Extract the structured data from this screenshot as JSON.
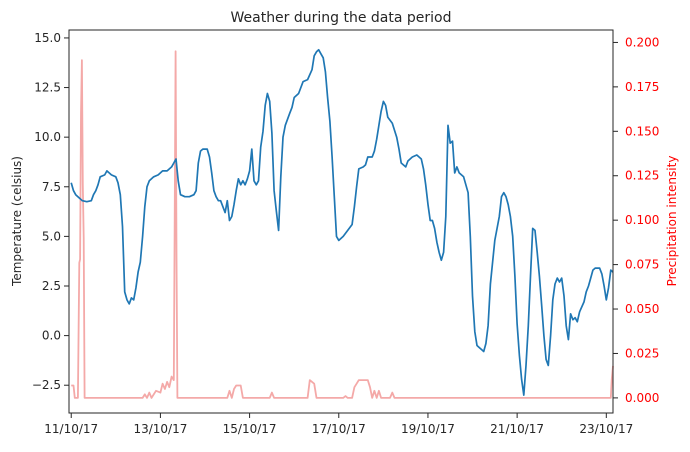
{
  "chart_data": {
    "type": "line",
    "title": "Weather during the data period",
    "xlabel": "",
    "x_ticks": [
      "11/10/17",
      "13/10/17",
      "15/10/17",
      "17/10/17",
      "19/10/17",
      "21/10/17",
      "23/10/17"
    ],
    "xlim": [
      -0.05,
      12.15
    ],
    "y_left": {
      "label": "Temperature (celsius)",
      "ylim": [
        -3.9,
        15.4
      ],
      "ticks": [
        "−2.5",
        "0.0",
        "2.5",
        "5.0",
        "7.5",
        "10.0",
        "12.5",
        "15.0"
      ],
      "tick_values": [
        -2.5,
        0,
        2.5,
        5,
        7.5,
        10,
        12.5,
        15
      ]
    },
    "y_right": {
      "label": "Precipitation intensity",
      "ylim": [
        -0.0085,
        0.207
      ],
      "ticks": [
        "0.000",
        "0.025",
        "0.050",
        "0.075",
        "0.100",
        "0.125",
        "0.150",
        "0.175",
        "0.200"
      ],
      "tick_values": [
        0,
        0.025,
        0.05,
        0.075,
        0.1,
        0.125,
        0.15,
        0.175,
        0.2
      ]
    },
    "grid": false,
    "series": [
      {
        "axis": "left",
        "color": "#1f77b4",
        "points": [
          [
            0,
            7.7
          ],
          [
            0.05,
            7.3
          ],
          [
            0.1,
            7.1
          ],
          [
            0.15,
            7.0
          ],
          [
            0.25,
            6.8
          ],
          [
            0.35,
            6.75
          ],
          [
            0.45,
            6.8
          ],
          [
            0.5,
            7.1
          ],
          [
            0.55,
            7.3
          ],
          [
            0.6,
            7.6
          ],
          [
            0.65,
            8.0
          ],
          [
            0.75,
            8.1
          ],
          [
            0.8,
            8.3
          ],
          [
            0.9,
            8.1
          ],
          [
            1.0,
            8.0
          ],
          [
            1.05,
            7.7
          ],
          [
            1.1,
            7.1
          ],
          [
            1.15,
            5.5
          ],
          [
            1.2,
            2.2
          ],
          [
            1.25,
            1.8
          ],
          [
            1.3,
            1.6
          ],
          [
            1.35,
            1.9
          ],
          [
            1.4,
            1.8
          ],
          [
            1.45,
            2.4
          ],
          [
            1.5,
            3.2
          ],
          [
            1.55,
            3.7
          ],
          [
            1.6,
            5.0
          ],
          [
            1.65,
            6.5
          ],
          [
            1.7,
            7.5
          ],
          [
            1.75,
            7.8
          ],
          [
            1.8,
            7.9
          ],
          [
            1.85,
            8.0
          ],
          [
            1.95,
            8.1
          ],
          [
            2.05,
            8.3
          ],
          [
            2.15,
            8.3
          ],
          [
            2.25,
            8.5
          ],
          [
            2.3,
            8.7
          ],
          [
            2.35,
            8.9
          ],
          [
            2.4,
            7.8
          ],
          [
            2.45,
            7.1
          ],
          [
            2.55,
            7.0
          ],
          [
            2.65,
            7.0
          ],
          [
            2.75,
            7.1
          ],
          [
            2.8,
            7.3
          ],
          [
            2.85,
            8.7
          ],
          [
            2.9,
            9.3
          ],
          [
            2.95,
            9.4
          ],
          [
            3.05,
            9.4
          ],
          [
            3.1,
            9.0
          ],
          [
            3.15,
            8.2
          ],
          [
            3.2,
            7.3
          ],
          [
            3.25,
            7.0
          ],
          [
            3.3,
            6.8
          ],
          [
            3.35,
            6.8
          ],
          [
            3.45,
            6.2
          ],
          [
            3.5,
            6.8
          ],
          [
            3.55,
            5.8
          ],
          [
            3.6,
            6.0
          ],
          [
            3.65,
            6.6
          ],
          [
            3.7,
            7.3
          ],
          [
            3.75,
            7.9
          ],
          [
            3.8,
            7.6
          ],
          [
            3.85,
            7.8
          ],
          [
            3.9,
            7.6
          ],
          [
            3.95,
            7.9
          ],
          [
            4.0,
            8.3
          ],
          [
            4.05,
            9.4
          ],
          [
            4.1,
            7.8
          ],
          [
            4.15,
            7.6
          ],
          [
            4.2,
            7.8
          ],
          [
            4.25,
            9.5
          ],
          [
            4.3,
            10.3
          ],
          [
            4.35,
            11.6
          ],
          [
            4.4,
            12.2
          ],
          [
            4.45,
            11.8
          ],
          [
            4.5,
            10.2
          ],
          [
            4.55,
            7.3
          ],
          [
            4.6,
            6.3
          ],
          [
            4.65,
            5.3
          ],
          [
            4.7,
            8.0
          ],
          [
            4.75,
            10.0
          ],
          [
            4.8,
            10.6
          ],
          [
            4.85,
            10.9
          ],
          [
            4.9,
            11.2
          ],
          [
            4.95,
            11.5
          ],
          [
            5.0,
            12.0
          ],
          [
            5.1,
            12.2
          ],
          [
            5.2,
            12.8
          ],
          [
            5.3,
            12.9
          ],
          [
            5.4,
            13.4
          ],
          [
            5.45,
            14.1
          ],
          [
            5.5,
            14.3
          ],
          [
            5.55,
            14.4
          ],
          [
            5.6,
            14.2
          ],
          [
            5.65,
            14.0
          ],
          [
            5.7,
            13.3
          ],
          [
            5.75,
            12.0
          ],
          [
            5.8,
            10.8
          ],
          [
            5.85,
            9.0
          ],
          [
            5.9,
            7.0
          ],
          [
            5.95,
            5.0
          ],
          [
            6.0,
            4.8
          ],
          [
            6.1,
            5.0
          ],
          [
            6.2,
            5.3
          ],
          [
            6.3,
            5.6
          ],
          [
            6.35,
            6.5
          ],
          [
            6.4,
            7.5
          ],
          [
            6.45,
            8.4
          ],
          [
            6.55,
            8.5
          ],
          [
            6.6,
            8.6
          ],
          [
            6.65,
            9.0
          ],
          [
            6.75,
            9.0
          ],
          [
            6.8,
            9.3
          ],
          [
            6.85,
            9.9
          ],
          [
            6.9,
            10.6
          ],
          [
            6.95,
            11.3
          ],
          [
            7.0,
            11.8
          ],
          [
            7.05,
            11.6
          ],
          [
            7.1,
            11.0
          ],
          [
            7.2,
            10.7
          ],
          [
            7.3,
            10.0
          ],
          [
            7.35,
            9.4
          ],
          [
            7.4,
            8.7
          ],
          [
            7.5,
            8.5
          ],
          [
            7.55,
            8.8
          ],
          [
            7.65,
            9.0
          ],
          [
            7.75,
            9.1
          ],
          [
            7.85,
            8.9
          ],
          [
            7.9,
            8.4
          ],
          [
            7.95,
            7.6
          ],
          [
            8.0,
            6.6
          ],
          [
            8.05,
            5.8
          ],
          [
            8.1,
            5.8
          ],
          [
            8.15,
            5.4
          ],
          [
            8.2,
            4.7
          ],
          [
            8.25,
            4.2
          ],
          [
            8.3,
            3.8
          ],
          [
            8.35,
            4.2
          ],
          [
            8.4,
            6.0
          ],
          [
            8.45,
            10.6
          ],
          [
            8.5,
            9.7
          ],
          [
            8.55,
            9.8
          ],
          [
            8.6,
            8.2
          ],
          [
            8.65,
            8.5
          ],
          [
            8.7,
            8.2
          ],
          [
            8.8,
            8.0
          ],
          [
            8.9,
            7.2
          ],
          [
            8.95,
            5.0
          ],
          [
            9.0,
            2.0
          ],
          [
            9.05,
            0.2
          ],
          [
            9.1,
            -0.5
          ],
          [
            9.15,
            -0.6
          ],
          [
            9.2,
            -0.7
          ],
          [
            9.25,
            -0.8
          ],
          [
            9.3,
            -0.4
          ],
          [
            9.35,
            0.5
          ],
          [
            9.4,
            2.6
          ],
          [
            9.5,
            4.8
          ],
          [
            9.6,
            6.0
          ],
          [
            9.65,
            7.0
          ],
          [
            9.7,
            7.2
          ],
          [
            9.75,
            7.0
          ],
          [
            9.8,
            6.6
          ],
          [
            9.85,
            6.0
          ],
          [
            9.9,
            5.0
          ],
          [
            9.95,
            3.0
          ],
          [
            10.0,
            0.6
          ],
          [
            10.05,
            -1.0
          ],
          [
            10.1,
            -2.2
          ],
          [
            10.15,
            -3.0
          ],
          [
            10.2,
            -1.5
          ],
          [
            10.25,
            0.5
          ],
          [
            10.3,
            3.0
          ],
          [
            10.35,
            5.4
          ],
          [
            10.4,
            5.3
          ],
          [
            10.45,
            4.2
          ],
          [
            10.5,
            3.0
          ],
          [
            10.55,
            1.5
          ],
          [
            10.6,
            0.0
          ],
          [
            10.65,
            -1.2
          ],
          [
            10.7,
            -1.5
          ],
          [
            10.75,
            0.0
          ],
          [
            10.8,
            1.8
          ],
          [
            10.85,
            2.6
          ],
          [
            10.9,
            2.9
          ],
          [
            10.95,
            2.7
          ],
          [
            11.0,
            2.9
          ],
          [
            11.05,
            2.0
          ],
          [
            11.1,
            0.5
          ],
          [
            11.15,
            -0.2
          ],
          [
            11.2,
            1.1
          ],
          [
            11.25,
            0.8
          ],
          [
            11.3,
            0.9
          ],
          [
            11.35,
            0.7
          ],
          [
            11.4,
            1.2
          ],
          [
            11.5,
            1.7
          ],
          [
            11.55,
            2.2
          ],
          [
            11.6,
            2.5
          ],
          [
            11.65,
            2.9
          ],
          [
            11.7,
            3.3
          ],
          [
            11.75,
            3.4
          ],
          [
            11.85,
            3.4
          ],
          [
            11.9,
            3.1
          ],
          [
            11.95,
            2.5
          ],
          [
            12.0,
            1.8
          ],
          [
            12.05,
            2.4
          ],
          [
            12.1,
            3.3
          ],
          [
            12.15,
            3.2
          ]
        ]
      },
      {
        "axis": "right",
        "color": "#f4a9a8",
        "points": [
          [
            0,
            0.007
          ],
          [
            0.05,
            0.007
          ],
          [
            0.08,
            0.0
          ],
          [
            0.15,
            0.0
          ],
          [
            0.18,
            0.076
          ],
          [
            0.2,
            0.078
          ],
          [
            0.22,
            0.16
          ],
          [
            0.24,
            0.19
          ],
          [
            0.26,
            0.12
          ],
          [
            0.28,
            0.09
          ],
          [
            0.3,
            0.0
          ],
          [
            1.6,
            0.0
          ],
          [
            1.65,
            0.002
          ],
          [
            1.7,
            0.0
          ],
          [
            1.75,
            0.003
          ],
          [
            1.8,
            0.0
          ],
          [
            1.9,
            0.004
          ],
          [
            2.0,
            0.003
          ],
          [
            2.05,
            0.008
          ],
          [
            2.1,
            0.005
          ],
          [
            2.15,
            0.009
          ],
          [
            2.2,
            0.006
          ],
          [
            2.25,
            0.012
          ],
          [
            2.3,
            0.01
          ],
          [
            2.32,
            0.1
          ],
          [
            2.34,
            0.195
          ],
          [
            2.36,
            0.08
          ],
          [
            2.38,
            0.0
          ],
          [
            3.5,
            0.0
          ],
          [
            3.55,
            0.004
          ],
          [
            3.6,
            0.0
          ],
          [
            3.65,
            0.005
          ],
          [
            3.7,
            0.007
          ],
          [
            3.8,
            0.007
          ],
          [
            3.85,
            0.0
          ],
          [
            4.45,
            0.0
          ],
          [
            4.5,
            0.003
          ],
          [
            4.55,
            0.0
          ],
          [
            5.3,
            0.0
          ],
          [
            5.35,
            0.01
          ],
          [
            5.45,
            0.008
          ],
          [
            5.5,
            0.0
          ],
          [
            6.1,
            0.0
          ],
          [
            6.15,
            0.001
          ],
          [
            6.2,
            0.0
          ],
          [
            6.3,
            0.0
          ],
          [
            6.35,
            0.006
          ],
          [
            6.4,
            0.008
          ],
          [
            6.45,
            0.01
          ],
          [
            6.65,
            0.01
          ],
          [
            6.7,
            0.006
          ],
          [
            6.75,
            0.0
          ],
          [
            6.8,
            0.004
          ],
          [
            6.85,
            0.0
          ],
          [
            6.9,
            0.004
          ],
          [
            6.95,
            0.0
          ],
          [
            7.15,
            0.0
          ],
          [
            7.2,
            0.003
          ],
          [
            7.25,
            0.0
          ],
          [
            12.1,
            0.0
          ],
          [
            12.12,
            0.01
          ],
          [
            12.15,
            0.018
          ]
        ]
      }
    ]
  }
}
